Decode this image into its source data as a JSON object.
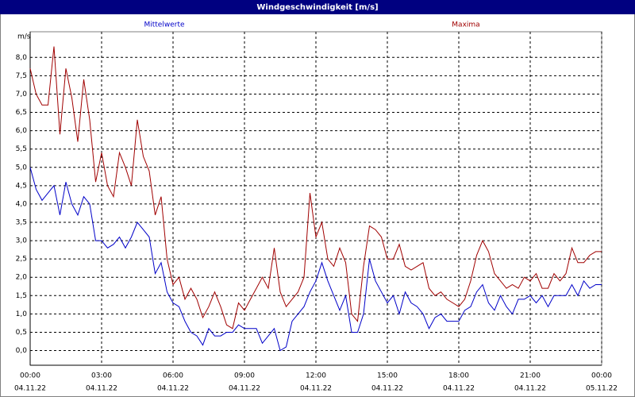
{
  "chart_data": {
    "type": "line",
    "title": "Windgeschwindigkeit [m/s]",
    "y_unit": "m/s",
    "x": [
      0,
      0.25,
      0.5,
      0.75,
      1,
      1.25,
      1.5,
      1.75,
      2,
      2.25,
      2.5,
      2.75,
      3,
      3.25,
      3.5,
      3.75,
      4,
      4.25,
      4.5,
      4.75,
      5,
      5.25,
      5.5,
      5.75,
      6,
      6.25,
      6.5,
      6.75,
      7,
      7.25,
      7.5,
      7.75,
      8,
      8.25,
      8.5,
      8.75,
      9,
      9.25,
      9.5,
      9.75,
      10,
      10.25,
      10.5,
      10.75,
      11,
      11.25,
      11.5,
      11.75,
      12,
      12.25,
      12.5,
      12.75,
      13,
      13.25,
      13.5,
      13.75,
      14,
      14.25,
      14.5,
      14.75,
      15,
      15.25,
      15.5,
      15.75,
      16,
      16.25,
      16.5,
      16.75,
      17,
      17.25,
      17.5,
      17.75,
      18,
      18.25,
      18.5,
      18.75,
      19,
      19.25,
      19.5,
      19.75,
      20,
      20.25,
      20.5,
      20.75,
      21,
      21.25,
      21.5,
      21.75,
      22,
      22.25,
      22.5,
      22.75,
      23,
      23.25,
      23.5,
      23.75,
      24
    ],
    "series": [
      {
        "name": "Mittelwerte",
        "color": "#0000c8",
        "values": [
          5.0,
          4.4,
          4.1,
          4.3,
          4.5,
          3.7,
          4.6,
          4.0,
          3.7,
          4.2,
          4.0,
          3.0,
          3.0,
          2.8,
          2.9,
          3.1,
          2.8,
          3.1,
          3.5,
          3.3,
          3.1,
          2.1,
          2.4,
          1.6,
          1.3,
          1.2,
          0.8,
          0.5,
          0.4,
          0.15,
          0.6,
          0.4,
          0.4,
          0.5,
          0.5,
          0.7,
          0.6,
          0.6,
          0.6,
          0.2,
          0.4,
          0.6,
          0.0,
          0.1,
          0.8,
          1.0,
          1.2,
          1.6,
          1.9,
          2.4,
          1.9,
          1.5,
          1.1,
          1.5,
          0.5,
          0.5,
          1.0,
          2.5,
          1.9,
          1.6,
          1.3,
          1.5,
          1.0,
          1.6,
          1.3,
          1.2,
          1.0,
          0.6,
          0.9,
          1.0,
          0.8,
          0.8,
          0.8,
          1.1,
          1.2,
          1.6,
          1.8,
          1.3,
          1.1,
          1.5,
          1.2,
          1.0,
          1.4,
          1.4,
          1.5,
          1.3,
          1.5,
          1.2,
          1.5,
          1.5,
          1.5,
          1.8,
          1.5,
          1.9,
          1.7,
          1.8,
          1.8
        ]
      },
      {
        "name": "Maxima",
        "color": "#a00000",
        "values": [
          7.7,
          7.0,
          6.7,
          6.7,
          8.3,
          5.9,
          7.7,
          6.9,
          5.7,
          7.4,
          6.3,
          4.6,
          5.4,
          4.5,
          4.2,
          5.4,
          5.0,
          4.5,
          6.3,
          5.3,
          4.9,
          3.7,
          4.2,
          2.5,
          1.8,
          2.0,
          1.4,
          1.7,
          1.4,
          0.9,
          1.2,
          1.6,
          1.2,
          0.7,
          0.6,
          1.3,
          1.1,
          1.4,
          1.7,
          2.0,
          1.7,
          2.8,
          1.6,
          1.2,
          1.4,
          1.6,
          2.0,
          4.3,
          3.1,
          3.5,
          2.5,
          2.3,
          2.8,
          2.4,
          1.0,
          0.8,
          2.3,
          3.4,
          3.3,
          3.1,
          2.5,
          2.5,
          2.9,
          2.3,
          2.2,
          2.3,
          2.4,
          1.7,
          1.5,
          1.6,
          1.4,
          1.3,
          1.2,
          1.4,
          1.9,
          2.6,
          3.0,
          2.7,
          2.1,
          1.9,
          1.7,
          1.8,
          1.7,
          2.0,
          1.9,
          2.1,
          1.7,
          1.7,
          2.1,
          1.9,
          2.1,
          2.8,
          2.4,
          2.4,
          2.6,
          2.7,
          2.7
        ]
      }
    ],
    "xlim": [
      0,
      24
    ],
    "xticks": [
      {
        "value": 0,
        "label": "00:00"
      },
      {
        "value": 3,
        "label": "03:00"
      },
      {
        "value": 6,
        "label": "06:00"
      },
      {
        "value": 9,
        "label": "09:00"
      },
      {
        "value": 12,
        "label": "12:00"
      },
      {
        "value": 15,
        "label": "15:00"
      },
      {
        "value": 18,
        "label": "18:00"
      },
      {
        "value": 21,
        "label": "21:00"
      },
      {
        "value": 24,
        "label": "00:00"
      }
    ],
    "xtick_dates": [
      "04.11.22",
      "04.11.22",
      "04.11.22",
      "04.11.22",
      "04.11.22",
      "04.11.22",
      "04.11.22",
      "04.11.22",
      "05.11.22"
    ],
    "ylim": [
      -0.4,
      8.7
    ],
    "yticks": [
      {
        "value": 0,
        "label": "0,0"
      },
      {
        "value": 0.5,
        "label": "0,5"
      },
      {
        "value": 1,
        "label": "1,0"
      },
      {
        "value": 1.5,
        "label": "1,5"
      },
      {
        "value": 2,
        "label": "2,0"
      },
      {
        "value": 2.5,
        "label": "2,5"
      },
      {
        "value": 3,
        "label": "3,0"
      },
      {
        "value": 3.5,
        "label": "3,5"
      },
      {
        "value": 4,
        "label": "4,0"
      },
      {
        "value": 4.5,
        "label": "4,5"
      },
      {
        "value": 5,
        "label": "5,0"
      },
      {
        "value": 5.5,
        "label": "5,5"
      },
      {
        "value": 6,
        "label": "6,0"
      },
      {
        "value": 6.5,
        "label": "6,5"
      },
      {
        "value": 7,
        "label": "7,0"
      },
      {
        "value": 7.5,
        "label": "7,5"
      },
      {
        "value": 8,
        "label": "8,0"
      }
    ],
    "grid": true
  }
}
